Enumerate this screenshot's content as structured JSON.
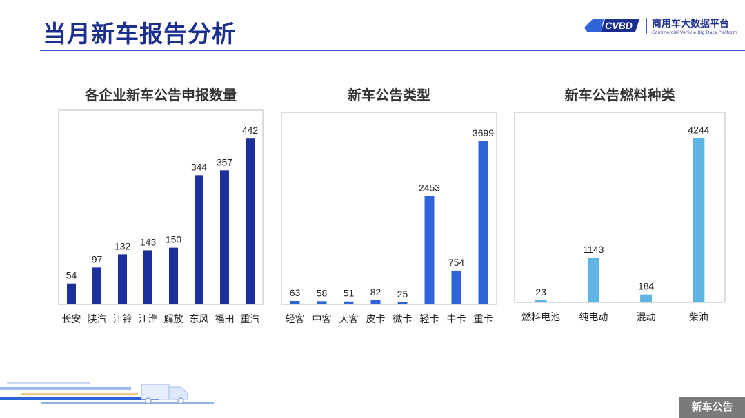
{
  "header": {
    "title": "当月新车报告分析",
    "brand_name": "商用车大数据平台",
    "brand_subtitle": "Commercial Vehicle Big Data Platform",
    "brand_logo_text": "CVBD"
  },
  "footer": {
    "tag": "新车公告"
  },
  "colors": {
    "title": "#1c2f8e",
    "rule": "#3d55c9",
    "chart1_bar": "#1c2f9a",
    "chart2_bar": "#2f64d8",
    "chart3_bar": "#5fb4e3",
    "tag_bg": "#7a7a7a"
  },
  "chart_data": [
    {
      "type": "bar",
      "title": "各企业新车公告申报数量",
      "categories": [
        "长安",
        "陕汽",
        "江铃",
        "江淮",
        "解放",
        "东风",
        "福田",
        "重汽"
      ],
      "values": [
        54,
        97,
        132,
        143,
        150,
        344,
        357,
        442
      ],
      "ylim": [
        0,
        470
      ],
      "grid": false,
      "data_labels": true
    },
    {
      "type": "bar",
      "title": "新车公告类型",
      "categories": [
        "轻客",
        "中客",
        "大客",
        "皮卡",
        "微卡",
        "轻卡",
        "中卡",
        "重卡"
      ],
      "values": [
        63,
        58,
        51,
        82,
        25,
        2453,
        754,
        3699
      ],
      "ylim": [
        0,
        3950
      ],
      "grid": false,
      "data_labels": true
    },
    {
      "type": "bar",
      "title": "新车公告燃料种类",
      "categories": [
        "燃料电池",
        "纯电动",
        "混动",
        "柴油"
      ],
      "values": [
        23,
        1143,
        184,
        4244
      ],
      "ylim": [
        0,
        4450
      ],
      "grid": false,
      "data_labels": true
    }
  ]
}
